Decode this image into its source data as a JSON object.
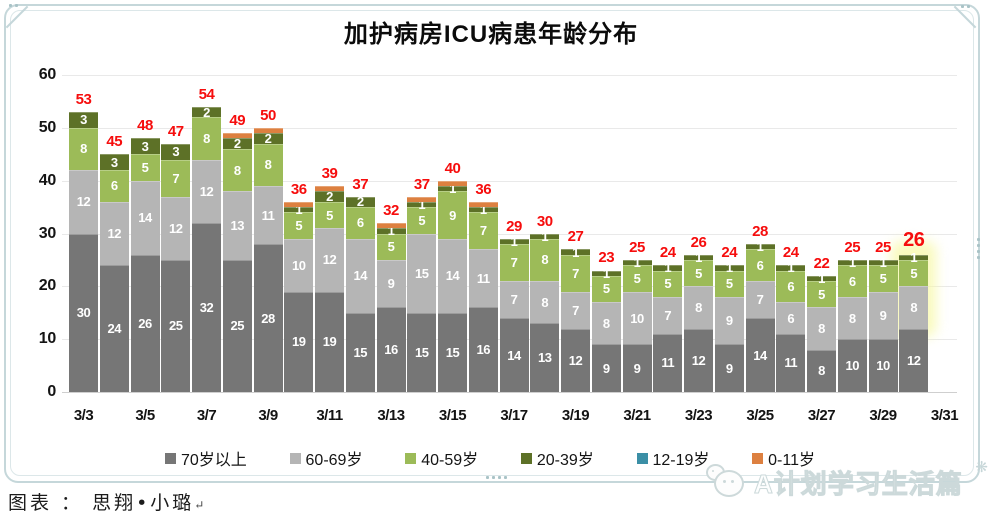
{
  "page": {
    "footer_credit": "图表 ： 思翔•小璐",
    "footer_return_mark": "↵",
    "watermark_text": "A计划学习生活篇"
  },
  "colors": {
    "total_label": "#f60d0d",
    "grid": "#e9e9e9",
    "axis_text": "#141414",
    "frame": "#c5d7da",
    "highlight_glow": "#f7f8a0"
  },
  "chart_data": {
    "type": "bar",
    "stacked": true,
    "title": "加护病房ICU病患年龄分布",
    "xlabel": "",
    "ylabel": "",
    "ylim": [
      0,
      60
    ],
    "y_ticks": [
      0,
      10,
      20,
      30,
      40,
      50,
      60
    ],
    "grid": true,
    "legend_position": "bottom",
    "highlight_last_bar": true,
    "categories": [
      "3/3",
      "3/4",
      "3/5",
      "3/6",
      "3/7",
      "3/8",
      "3/9",
      "3/10",
      "3/11",
      "3/12",
      "3/13",
      "3/14",
      "3/15",
      "3/16",
      "3/17",
      "3/18",
      "3/19",
      "3/20",
      "3/21",
      "3/22",
      "3/23",
      "3/24",
      "3/25",
      "3/26",
      "3/27",
      "3/28",
      "3/29",
      "3/30"
    ],
    "x_tick_labels": [
      "3/3",
      "3/5",
      "3/7",
      "3/9",
      "3/11",
      "3/13",
      "3/15",
      "3/17",
      "3/19",
      "3/21",
      "3/23",
      "3/25",
      "3/27",
      "3/29",
      "3/31"
    ],
    "series": [
      {
        "name": "70岁以上",
        "color": "#767676",
        "values": [
          30,
          24,
          26,
          25,
          32,
          25,
          28,
          19,
          19,
          15,
          16,
          15,
          15,
          16,
          14,
          13,
          12,
          9,
          9,
          11,
          12,
          9,
          14,
          11,
          8,
          10,
          10,
          12
        ]
      },
      {
        "name": "60-69岁",
        "color": "#b5b5b5",
        "values": [
          12,
          12,
          14,
          12,
          12,
          13,
          11,
          10,
          12,
          14,
          9,
          15,
          14,
          11,
          7,
          8,
          7,
          8,
          10,
          7,
          8,
          9,
          7,
          6,
          8,
          8,
          9,
          8
        ]
      },
      {
        "name": "40-59岁",
        "color": "#9cbb58",
        "values": [
          8,
          6,
          5,
          7,
          8,
          8,
          8,
          5,
          5,
          6,
          5,
          5,
          9,
          7,
          7,
          8,
          7,
          5,
          5,
          5,
          5,
          5,
          6,
          6,
          5,
          6,
          5,
          5
        ]
      },
      {
        "name": "20-39岁",
        "color": "#5d7127",
        "values": [
          3,
          3,
          3,
          3,
          2,
          2,
          2,
          1,
          2,
          2,
          1,
          1,
          1,
          1,
          1,
          1,
          1,
          1,
          1,
          1,
          1,
          1,
          1,
          1,
          1,
          1,
          1,
          1
        ]
      },
      {
        "name": "12-19岁",
        "color": "#3b8fa6",
        "values": [
          0,
          0,
          0,
          0,
          0,
          0,
          0,
          0,
          0,
          0,
          0,
          0,
          0,
          0,
          0,
          0,
          0,
          0,
          0,
          0,
          0,
          0,
          0,
          0,
          0,
          0,
          0,
          0
        ]
      },
      {
        "name": "0-11岁",
        "color": "#dd8040",
        "values": [
          0,
          0,
          0,
          0,
          0,
          1,
          1,
          1,
          1,
          0,
          1,
          1,
          1,
          1,
          0,
          0,
          0,
          0,
          0,
          0,
          0,
          0,
          0,
          0,
          0,
          0,
          0,
          0
        ]
      }
    ],
    "totals": [
      53,
      45,
      48,
      47,
      54,
      49,
      50,
      36,
      39,
      37,
      32,
      37,
      40,
      36,
      29,
      30,
      27,
      23,
      25,
      24,
      26,
      24,
      28,
      24,
      22,
      25,
      25,
      26
    ]
  }
}
